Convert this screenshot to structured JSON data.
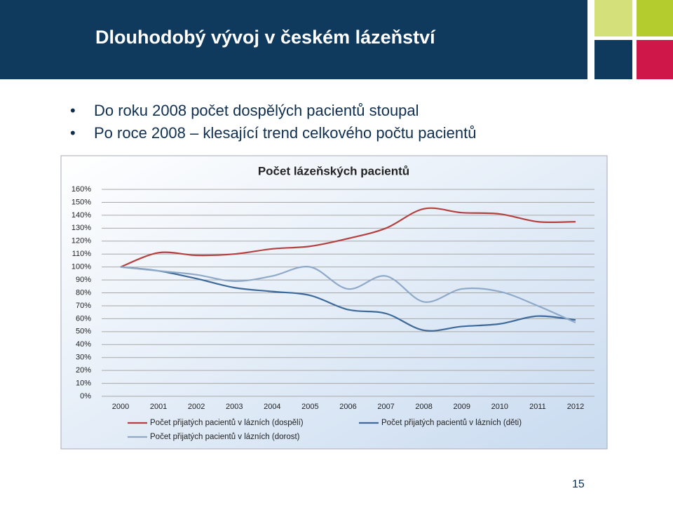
{
  "slide": {
    "title": "Dlouhodobý vývoj v českém lázeňství",
    "bullets": [
      "Do roku 2008 počet dospělých pacientů stoupal",
      "Po roce 2008 – klesající trend celkového počtu pacientů"
    ],
    "page_number": "15"
  },
  "chart_data": {
    "type": "line",
    "title": "Počet lázeňských pacientů",
    "categories": [
      "2000",
      "2001",
      "2002",
      "2003",
      "2004",
      "2005",
      "2006",
      "2007",
      "2008",
      "2009",
      "2010",
      "2011",
      "2012"
    ],
    "series": [
      {
        "name": "Počet přijatých pacientů v lázních (dospělí)",
        "color": "#b5403f",
        "values": [
          100,
          111,
          109,
          110,
          114,
          116,
          122,
          130,
          145,
          142,
          141,
          135,
          135
        ]
      },
      {
        "name": "Počet přijatých pacientů v lázních (děti)",
        "color": "#3d6a9a",
        "values": [
          100,
          97,
          91,
          84,
          81,
          78,
          67,
          64,
          51,
          54,
          56,
          62,
          59
        ]
      },
      {
        "name": "Počet přijatých pacientů v lázních (dorost)",
        "color": "#8fa9c8",
        "values": [
          100,
          97,
          94,
          89,
          93,
          100,
          83,
          93,
          73,
          83,
          81,
          70,
          57
        ]
      }
    ],
    "ylim": [
      0,
      160
    ],
    "yticks": [
      {
        "value": 0,
        "label": "0%"
      },
      {
        "value": 10,
        "label": "10%"
      },
      {
        "value": 20,
        "label": "20%"
      },
      {
        "value": 30,
        "label": "30%"
      },
      {
        "value": 40,
        "label": "40%"
      },
      {
        "value": 50,
        "label": "50%"
      },
      {
        "value": 60,
        "label": "60%"
      },
      {
        "value": 70,
        "label": "70%"
      },
      {
        "value": 80,
        "label": "80%"
      },
      {
        "value": 90,
        "label": "90%"
      },
      {
        "value": 100,
        "label": "100%"
      },
      {
        "value": 110,
        "label": "110%"
      },
      {
        "value": 120,
        "label": "120%"
      },
      {
        "value": 130,
        "label": "130%"
      },
      {
        "value": 140,
        "label": "140%"
      },
      {
        "value": 150,
        "label": "150%"
      },
      {
        "value": 160,
        "label": "160%"
      }
    ],
    "grid": true,
    "legend": "bottom"
  }
}
